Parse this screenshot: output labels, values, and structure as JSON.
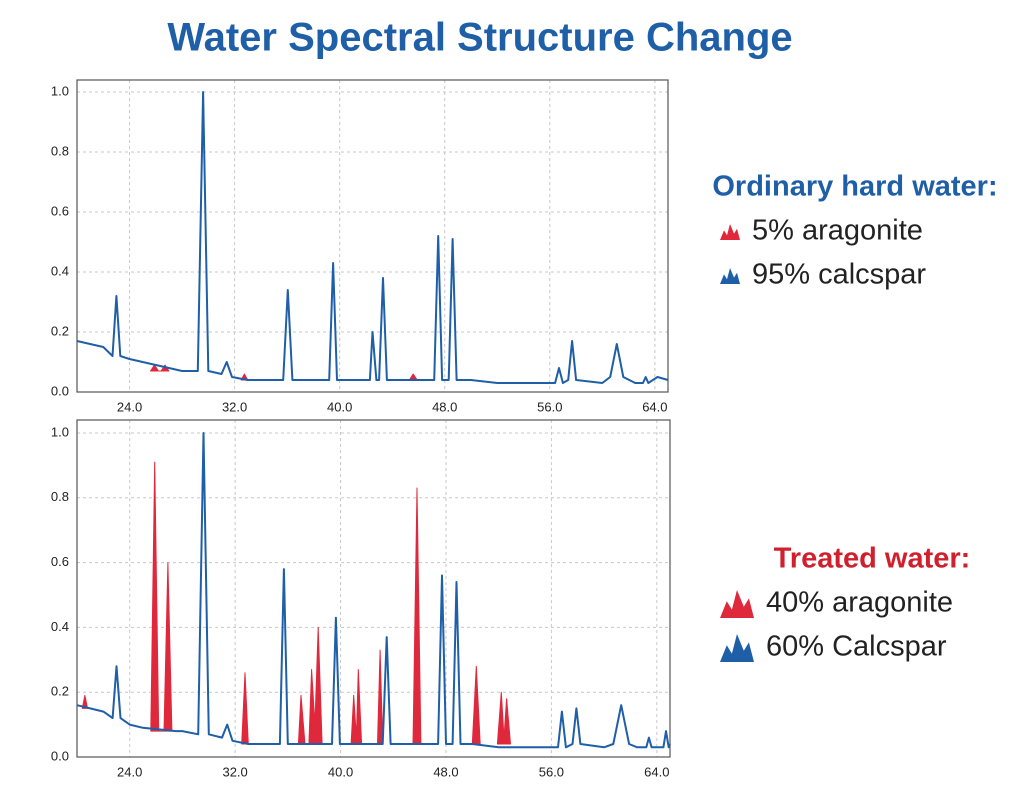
{
  "title": "Water Spectral Structure Change",
  "chart_data": [
    {
      "type": "line",
      "legend_title": "Ordinary hard water:",
      "legend_title_color": "#1f5fa8",
      "xlim": [
        20,
        65
      ],
      "ylim": [
        0,
        1.04
      ],
      "grid": true,
      "xticks": [
        {
          "value": 24,
          "label": "24.0"
        },
        {
          "value": 32,
          "label": "32.0"
        },
        {
          "value": 40,
          "label": "40.0"
        },
        {
          "value": 48,
          "label": "48.0"
        },
        {
          "value": 56,
          "label": "56.0"
        },
        {
          "value": 64,
          "label": "64.0"
        }
      ],
      "yticks": [
        {
          "value": 0,
          "label": "0.0"
        },
        {
          "value": 0.2,
          "label": "0.2"
        },
        {
          "value": 0.4,
          "label": "0.4"
        },
        {
          "value": 0.6,
          "label": "0.6"
        },
        {
          "value": 0.8,
          "label": "0.8"
        },
        {
          "value": 1,
          "label": "1.0"
        }
      ],
      "series": [
        {
          "name": "5% aragonite",
          "color": "#e0283c",
          "style": "filled-peaks",
          "x": [
            25.6,
            25.9,
            26.2,
            26.4,
            26.7,
            27.0,
            29,
            32.5,
            32.75,
            33.0,
            40,
            45.3,
            45.6,
            45.9
          ],
          "values": [
            0.07,
            0.09,
            0.07,
            0.07,
            0.09,
            0.07,
            null,
            0.04,
            0.06,
            0.04,
            null,
            0.04,
            0.06,
            0.04
          ]
        },
        {
          "name": "95% calcspar",
          "color": "#1f5fa8",
          "style": "line",
          "x": [
            20,
            21,
            22,
            22.7,
            23.0,
            23.3,
            24,
            25,
            26,
            27,
            28,
            29.2,
            29.6,
            30,
            31,
            31.4,
            31.8,
            33,
            35.7,
            36.05,
            36.4,
            38,
            39.2,
            39.5,
            39.8,
            41,
            42.3,
            42.5,
            42.8,
            43.0,
            43.3,
            43.6,
            45,
            47.2,
            47.5,
            47.8,
            48.3,
            48.6,
            48.9,
            50,
            52,
            54,
            56.4,
            56.7,
            57.0,
            57.4,
            57.7,
            58.0,
            60,
            60.6,
            61.1,
            61.6,
            62.5,
            63.1,
            63.3,
            63.5,
            64.2,
            65
          ],
          "values": [
            0.17,
            0.16,
            0.15,
            0.12,
            0.32,
            0.12,
            0.11,
            0.1,
            0.09,
            0.08,
            0.07,
            0.07,
            1.0,
            0.07,
            0.06,
            0.1,
            0.05,
            0.04,
            0.04,
            0.34,
            0.04,
            0.04,
            0.04,
            0.43,
            0.04,
            0.04,
            0.04,
            0.2,
            0.04,
            0.04,
            0.38,
            0.04,
            0.04,
            0.04,
            0.52,
            0.04,
            0.04,
            0.51,
            0.04,
            0.04,
            0.03,
            0.03,
            0.03,
            0.08,
            0.03,
            0.04,
            0.17,
            0.04,
            0.03,
            0.05,
            0.16,
            0.05,
            0.03,
            0.03,
            0.05,
            0.03,
            0.05,
            0.04
          ]
        }
      ]
    },
    {
      "type": "line",
      "legend_title": "Treated water:",
      "legend_title_color": "#d0202e",
      "xlim": [
        20,
        65
      ],
      "ylim": [
        0,
        1.04
      ],
      "grid": true,
      "xticks": [
        {
          "value": 24,
          "label": "24.0"
        },
        {
          "value": 32,
          "label": "32.0"
        },
        {
          "value": 40,
          "label": "40.0"
        },
        {
          "value": 48,
          "label": "48.0"
        },
        {
          "value": 56,
          "label": "56.0"
        },
        {
          "value": 64,
          "label": "64.0"
        }
      ],
      "yticks": [
        {
          "value": 0,
          "label": "0.0"
        },
        {
          "value": 0.2,
          "label": "0.2"
        },
        {
          "value": 0.4,
          "label": "0.4"
        },
        {
          "value": 0.6,
          "label": "0.6"
        },
        {
          "value": 0.8,
          "label": "0.8"
        },
        {
          "value": 1,
          "label": "1.0"
        }
      ],
      "series": [
        {
          "name": "40% aragonite",
          "color": "#e0283c",
          "style": "filled-peaks",
          "x": [
            20.4,
            20.6,
            20.8,
            23.5,
            25.6,
            25.9,
            26.2,
            26.6,
            26.9,
            27.2,
            30,
            32.5,
            32.75,
            33.0,
            34,
            36.8,
            37.0,
            37.3,
            37.6,
            37.8,
            38.05,
            38.3,
            38.6,
            40,
            40.8,
            41.0,
            41.2,
            41.35,
            41.6,
            42,
            42.8,
            43.0,
            43.2,
            44.5,
            45.5,
            45.8,
            46.1,
            48,
            50.0,
            50.3,
            50.6,
            51,
            51.9,
            52.2,
            52.4,
            52.6,
            52.9
          ],
          "values": [
            0.15,
            0.19,
            0.15,
            null,
            0.08,
            0.91,
            0.08,
            0.08,
            0.6,
            0.08,
            null,
            0.04,
            0.26,
            0.04,
            null,
            0.04,
            0.19,
            0.04,
            0.04,
            0.27,
            0.1,
            0.4,
            0.04,
            null,
            0.04,
            0.19,
            0.06,
            0.27,
            0.04,
            null,
            0.04,
            0.33,
            0.04,
            null,
            0.04,
            0.83,
            0.04,
            null,
            0.04,
            0.28,
            0.04,
            null,
            0.04,
            0.2,
            0.06,
            0.18,
            0.04
          ]
        },
        {
          "name": "60% Calcspar",
          "color": "#1f5fa8",
          "style": "line",
          "x": [
            20,
            21,
            22,
            22.7,
            23.0,
            23.3,
            24,
            25,
            27.5,
            28,
            29.2,
            29.6,
            30,
            31,
            31.4,
            31.8,
            33,
            35.4,
            35.7,
            36.0,
            38,
            39.35,
            39.65,
            39.95,
            41,
            43.2,
            43.5,
            43.8,
            45,
            47.4,
            47.7,
            48.0,
            48.5,
            48.8,
            49.1,
            50,
            52,
            54,
            56.5,
            56.8,
            57.1,
            57.6,
            57.9,
            58.2,
            60,
            60.7,
            61.3,
            61.9,
            62.5,
            63.2,
            63.4,
            63.6,
            64.0,
            64.5,
            64.7,
            64.9,
            65
          ],
          "values": [
            0.16,
            0.15,
            0.14,
            0.12,
            0.28,
            0.12,
            0.1,
            0.09,
            0.08,
            0.08,
            0.07,
            1.0,
            0.07,
            0.06,
            0.1,
            0.05,
            0.04,
            0.04,
            0.58,
            0.04,
            0.04,
            0.04,
            0.43,
            0.04,
            0.04,
            0.04,
            0.37,
            0.04,
            0.04,
            0.04,
            0.56,
            0.04,
            0.04,
            0.54,
            0.04,
            0.04,
            0.03,
            0.03,
            0.03,
            0.14,
            0.03,
            0.04,
            0.15,
            0.04,
            0.03,
            0.04,
            0.16,
            0.04,
            0.03,
            0.03,
            0.06,
            0.03,
            0.03,
            0.03,
            0.08,
            0.03,
            0.04
          ]
        }
      ]
    }
  ]
}
